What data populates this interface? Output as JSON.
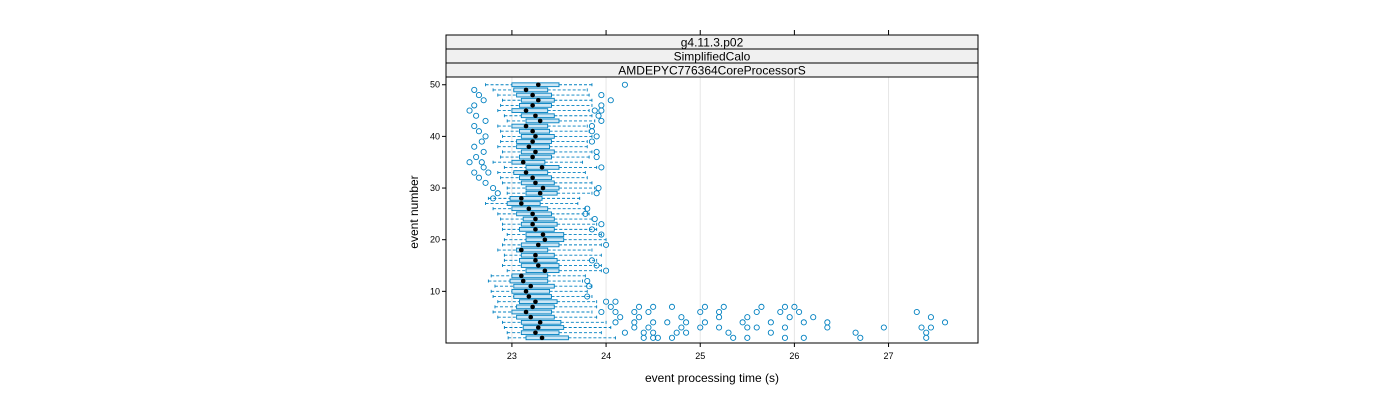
{
  "chart_data": {
    "type": "box",
    "orientation": "horizontal",
    "strips": [
      "g4.11.3.p02",
      "SimplifiedCalo",
      "AMDEPYC776364CoreProcessorS"
    ],
    "xlabel": "event processing time (s)",
    "ylabel": "event number",
    "xlim": [
      22.3,
      27.95
    ],
    "ylim": [
      0,
      51.5
    ],
    "x_ticks": [
      23,
      24,
      25,
      26,
      27
    ],
    "y_ticks": [
      10,
      20,
      30,
      40,
      50
    ],
    "grid": "vertical",
    "colors": {
      "box": "#0080c0",
      "fill": "#cce6f5",
      "median": "#000000",
      "strip": "#f0f0f0"
    },
    "boxes": [
      {
        "event": 1,
        "min": 22.96,
        "q1": 23.15,
        "median": 23.32,
        "q3": 23.6,
        "max": 24.1,
        "outliers": [
          24.4,
          24.5,
          24.55,
          24.7,
          25.35,
          25.5,
          25.9,
          26.1,
          26.7,
          27.4
        ]
      },
      {
        "event": 2,
        "min": 22.95,
        "q1": 23.1,
        "median": 23.25,
        "q3": 23.5,
        "max": 23.95,
        "outliers": [
          24.2,
          24.4,
          24.5,
          24.75,
          24.85,
          25.3,
          25.75,
          26.65,
          27.4
        ]
      },
      {
        "event": 3,
        "min": 22.92,
        "q1": 23.12,
        "median": 23.28,
        "q3": 23.55,
        "max": 24.05,
        "outliers": [
          24.3,
          24.45,
          24.8,
          25.0,
          25.2,
          25.5,
          25.6,
          25.9,
          26.35,
          26.95,
          27.35,
          27.45
        ]
      },
      {
        "event": 4,
        "min": 22.9,
        "q1": 23.1,
        "median": 23.3,
        "q3": 23.52,
        "max": 24.0,
        "outliers": [
          24.1,
          24.3,
          24.5,
          24.65,
          24.85,
          25.05,
          25.45,
          25.75,
          26.1,
          26.35,
          27.6
        ]
      },
      {
        "event": 5,
        "min": 22.85,
        "q1": 23.05,
        "median": 23.2,
        "q3": 23.45,
        "max": 23.9,
        "outliers": [
          24.15,
          24.35,
          24.8,
          25.2,
          25.5,
          25.95,
          26.2,
          27.45
        ]
      },
      {
        "event": 6,
        "min": 22.8,
        "q1": 23.0,
        "median": 23.15,
        "q3": 23.42,
        "max": 23.85,
        "outliers": [
          23.95,
          24.1,
          24.3,
          24.45,
          25.0,
          25.2,
          25.6,
          25.85,
          26.05,
          27.3
        ]
      },
      {
        "event": 7,
        "min": 22.82,
        "q1": 23.05,
        "median": 23.22,
        "q3": 23.45,
        "max": 23.9,
        "outliers": [
          24.05,
          24.35,
          24.5,
          24.7,
          25.05,
          25.25,
          25.65,
          25.9,
          26.0
        ]
      },
      {
        "event": 8,
        "min": 22.85,
        "q1": 23.08,
        "median": 23.25,
        "q3": 23.48,
        "max": 23.9,
        "outliers": [
          24.0,
          24.1
        ]
      },
      {
        "event": 9,
        "min": 22.8,
        "q1": 23.02,
        "median": 23.18,
        "q3": 23.42,
        "max": 23.85,
        "outliers": [
          23.8
        ]
      },
      {
        "event": 10,
        "min": 22.78,
        "q1": 23.0,
        "median": 23.15,
        "q3": 23.4,
        "max": 23.8,
        "outliers": []
      },
      {
        "event": 11,
        "min": 22.82,
        "q1": 23.02,
        "median": 23.2,
        "q3": 23.45,
        "max": 23.85,
        "outliers": [
          23.82
        ]
      },
      {
        "event": 12,
        "min": 22.75,
        "q1": 22.98,
        "median": 23.12,
        "q3": 23.38,
        "max": 23.75,
        "outliers": [
          23.8
        ]
      },
      {
        "event": 13,
        "min": 22.78,
        "q1": 23.0,
        "median": 23.1,
        "q3": 23.38,
        "max": 23.78,
        "outliers": []
      },
      {
        "event": 14,
        "min": 22.95,
        "q1": 23.15,
        "median": 23.35,
        "q3": 23.5,
        "max": 23.95,
        "outliers": [
          24.0
        ]
      },
      {
        "event": 15,
        "min": 22.9,
        "q1": 23.1,
        "median": 23.28,
        "q3": 23.5,
        "max": 23.95,
        "outliers": [
          23.9
        ]
      },
      {
        "event": 16,
        "min": 22.92,
        "q1": 23.08,
        "median": 23.25,
        "q3": 23.48,
        "max": 23.9,
        "outliers": [
          23.85
        ]
      },
      {
        "event": 17,
        "min": 22.92,
        "q1": 23.1,
        "median": 23.25,
        "q3": 23.45,
        "max": 23.95,
        "outliers": []
      },
      {
        "event": 18,
        "min": 22.85,
        "q1": 23.05,
        "median": 23.1,
        "q3": 23.38,
        "max": 23.85,
        "outliers": []
      },
      {
        "event": 19,
        "min": 22.9,
        "q1": 23.1,
        "median": 23.28,
        "q3": 23.5,
        "max": 23.95,
        "outliers": [
          24.0
        ]
      },
      {
        "event": 20,
        "min": 22.92,
        "q1": 23.15,
        "median": 23.35,
        "q3": 23.55,
        "max": 24.0,
        "outliers": []
      },
      {
        "event": 21,
        "min": 22.95,
        "q1": 23.15,
        "median": 23.33,
        "q3": 23.55,
        "max": 23.95,
        "outliers": [
          23.95
        ]
      },
      {
        "event": 22,
        "min": 22.9,
        "q1": 23.08,
        "median": 23.25,
        "q3": 23.45,
        "max": 23.9,
        "outliers": [
          23.85
        ]
      },
      {
        "event": 23,
        "min": 22.9,
        "q1": 23.1,
        "median": 23.22,
        "q3": 23.48,
        "max": 23.9,
        "outliers": [
          23.95
        ]
      },
      {
        "event": 24,
        "min": 22.88,
        "q1": 23.12,
        "median": 23.25,
        "q3": 23.45,
        "max": 23.85,
        "outliers": [
          23.88
        ]
      },
      {
        "event": 25,
        "min": 22.85,
        "q1": 23.05,
        "median": 23.22,
        "q3": 23.42,
        "max": 23.82,
        "outliers": [
          23.78
        ]
      },
      {
        "event": 26,
        "min": 22.8,
        "q1": 23.0,
        "median": 23.18,
        "q3": 23.38,
        "max": 23.78,
        "outliers": [
          23.8
        ]
      },
      {
        "event": 27,
        "min": 22.72,
        "q1": 22.95,
        "median": 23.1,
        "q3": 23.3,
        "max": 23.7,
        "outliers": []
      },
      {
        "event": 28,
        "min": 22.75,
        "q1": 22.98,
        "median": 23.1,
        "q3": 23.32,
        "max": 23.72,
        "outliers": [
          22.8
        ]
      },
      {
        "event": 29,
        "min": 22.95,
        "q1": 23.15,
        "median": 23.3,
        "q3": 23.48,
        "max": 23.85,
        "outliers": [
          22.85,
          23.9
        ]
      },
      {
        "event": 30,
        "min": 22.95,
        "q1": 23.15,
        "median": 23.33,
        "q3": 23.5,
        "max": 23.88,
        "outliers": [
          22.8,
          23.92
        ]
      },
      {
        "event": 31,
        "min": 22.9,
        "q1": 23.1,
        "median": 23.25,
        "q3": 23.45,
        "max": 23.85,
        "outliers": [
          22.72
        ]
      },
      {
        "event": 32,
        "min": 22.88,
        "q1": 23.08,
        "median": 23.22,
        "q3": 23.42,
        "max": 23.8,
        "outliers": [
          22.65
        ]
      },
      {
        "event": 33,
        "min": 22.85,
        "q1": 23.02,
        "median": 23.15,
        "q3": 23.38,
        "max": 23.78,
        "outliers": [
          22.6,
          22.75
        ]
      },
      {
        "event": 34,
        "min": 22.92,
        "q1": 23.15,
        "median": 23.32,
        "q3": 23.5,
        "max": 23.9,
        "outliers": [
          22.7,
          23.95
        ]
      },
      {
        "event": 35,
        "min": 22.8,
        "q1": 23.0,
        "median": 23.12,
        "q3": 23.35,
        "max": 23.75,
        "outliers": [
          22.55,
          22.68
        ]
      },
      {
        "event": 36,
        "min": 22.88,
        "q1": 23.08,
        "median": 23.22,
        "q3": 23.42,
        "max": 23.82,
        "outliers": [
          22.62,
          23.9
        ]
      },
      {
        "event": 37,
        "min": 22.9,
        "q1": 23.1,
        "median": 23.25,
        "q3": 23.45,
        "max": 23.85,
        "outliers": [
          22.7,
          23.9
        ]
      },
      {
        "event": 38,
        "min": 22.85,
        "q1": 23.05,
        "median": 23.18,
        "q3": 23.4,
        "max": 23.8,
        "outliers": [
          22.6
        ]
      },
      {
        "event": 39,
        "min": 22.88,
        "q1": 23.05,
        "median": 23.22,
        "q3": 23.42,
        "max": 23.8,
        "outliers": [
          22.68,
          23.85
        ]
      },
      {
        "event": 40,
        "min": 22.9,
        "q1": 23.1,
        "median": 23.25,
        "q3": 23.45,
        "max": 23.85,
        "outliers": [
          22.72,
          23.9
        ]
      },
      {
        "event": 41,
        "min": 22.88,
        "q1": 23.08,
        "median": 23.22,
        "q3": 23.4,
        "max": 23.82,
        "outliers": [
          22.65,
          23.85
        ]
      },
      {
        "event": 42,
        "min": 22.85,
        "q1": 23.0,
        "median": 23.15,
        "q3": 23.38,
        "max": 23.8,
        "outliers": [
          22.6,
          23.85
        ]
      },
      {
        "event": 43,
        "min": 22.95,
        "q1": 23.15,
        "median": 23.3,
        "q3": 23.5,
        "max": 23.88,
        "outliers": [
          22.72,
          23.95
        ]
      },
      {
        "event": 44,
        "min": 22.92,
        "q1": 23.1,
        "median": 23.25,
        "q3": 23.45,
        "max": 23.85,
        "outliers": [
          22.62,
          23.92
        ]
      },
      {
        "event": 45,
        "min": 22.85,
        "q1": 23.0,
        "median": 23.15,
        "q3": 23.38,
        "max": 23.82,
        "outliers": [
          22.55,
          23.88,
          23.95
        ]
      },
      {
        "event": 46,
        "min": 22.88,
        "q1": 23.08,
        "median": 23.22,
        "q3": 23.42,
        "max": 23.85,
        "outliers": [
          22.6,
          23.95
        ]
      },
      {
        "event": 47,
        "min": 22.9,
        "q1": 23.1,
        "median": 23.28,
        "q3": 23.45,
        "max": 23.85,
        "outliers": [
          22.7,
          24.05
        ]
      },
      {
        "event": 48,
        "min": 22.85,
        "q1": 23.05,
        "median": 23.22,
        "q3": 23.42,
        "max": 23.82,
        "outliers": [
          22.65,
          23.95
        ]
      },
      {
        "event": 49,
        "min": 22.8,
        "q1": 23.02,
        "median": 23.15,
        "q3": 23.38,
        "max": 23.8,
        "outliers": [
          22.6
        ]
      },
      {
        "event": 50,
        "min": 22.72,
        "q1": 23.0,
        "median": 23.28,
        "q3": 23.5,
        "max": 23.85,
        "outliers": [
          24.2
        ]
      }
    ]
  }
}
